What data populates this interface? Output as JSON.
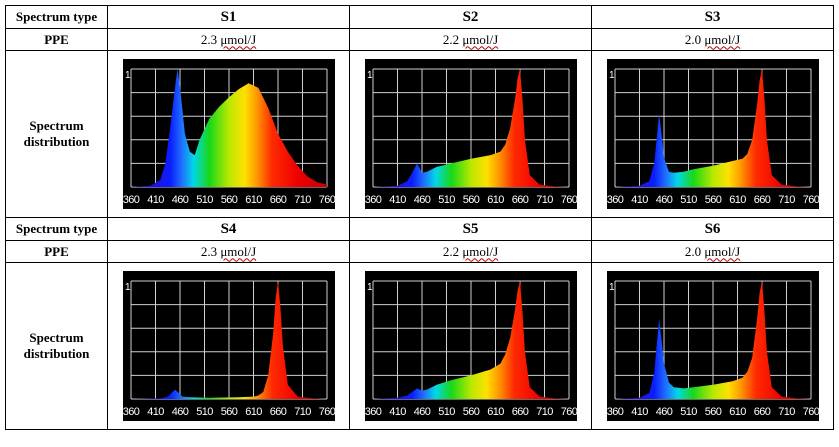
{
  "table": {
    "spectrum_type_label": "Spectrum type",
    "ppe_label": "PPE",
    "distribution_label_line1": "Spectrum",
    "distribution_label_line2": "distribution",
    "rows": [
      {
        "spectra": [
          {
            "name": "S1",
            "ppe_value": "2.3",
            "ppe_unit": "μmol/J"
          },
          {
            "name": "S2",
            "ppe_value": "2.2",
            "ppe_unit": "μmol/J"
          },
          {
            "name": "S3",
            "ppe_value": "2.0",
            "ppe_unit": "μmol/J"
          }
        ]
      },
      {
        "spectra": [
          {
            "name": "S4",
            "ppe_value": "2.3",
            "ppe_unit": "μmol/J"
          },
          {
            "name": "S5",
            "ppe_value": "2.2",
            "ppe_unit": "μmol/J"
          },
          {
            "name": "S6",
            "ppe_value": "2.0",
            "ppe_unit": "μmol/J"
          }
        ]
      }
    ]
  },
  "chart_data": [
    {
      "id": "S1",
      "type": "area",
      "ylabel": "1",
      "xlim": [
        360,
        760
      ],
      "ylim": [
        0,
        1
      ],
      "x_ticks": [
        360,
        410,
        460,
        510,
        560,
        610,
        660,
        710,
        760
      ],
      "x": [
        360,
        400,
        420,
        430,
        440,
        450,
        455,
        460,
        470,
        480,
        490,
        500,
        520,
        540,
        560,
        580,
        600,
        620,
        640,
        660,
        680,
        700,
        720,
        740,
        760
      ],
      "y": [
        0.0,
        0.01,
        0.06,
        0.2,
        0.5,
        0.85,
        1.0,
        0.85,
        0.45,
        0.3,
        0.27,
        0.4,
        0.58,
        0.68,
        0.76,
        0.83,
        0.88,
        0.84,
        0.67,
        0.45,
        0.3,
        0.18,
        0.09,
        0.04,
        0.02
      ]
    },
    {
      "id": "S2",
      "type": "area",
      "ylabel": "1",
      "xlim": [
        360,
        760
      ],
      "ylim": [
        0,
        1
      ],
      "x_ticks": [
        360,
        410,
        460,
        510,
        560,
        610,
        660,
        710,
        760
      ],
      "x": [
        360,
        410,
        430,
        440,
        450,
        460,
        470,
        490,
        520,
        560,
        600,
        620,
        630,
        640,
        650,
        655,
        660,
        665,
        670,
        680,
        700,
        730,
        760
      ],
      "y": [
        0.0,
        0.01,
        0.05,
        0.12,
        0.2,
        0.12,
        0.13,
        0.17,
        0.2,
        0.24,
        0.27,
        0.3,
        0.36,
        0.5,
        0.75,
        0.92,
        1.0,
        0.75,
        0.4,
        0.1,
        0.02,
        0.005,
        0.0
      ]
    },
    {
      "id": "S3",
      "type": "area",
      "ylabel": "1",
      "xlim": [
        360,
        760
      ],
      "ylim": [
        0,
        1
      ],
      "x_ticks": [
        360,
        410,
        460,
        510,
        560,
        610,
        660,
        710,
        760
      ],
      "x": [
        360,
        410,
        430,
        440,
        445,
        450,
        455,
        460,
        470,
        480,
        500,
        520,
        560,
        600,
        620,
        630,
        640,
        650,
        655,
        660,
        665,
        670,
        680,
        700,
        730,
        760
      ],
      "y": [
        0.0,
        0.01,
        0.05,
        0.2,
        0.4,
        0.62,
        0.45,
        0.25,
        0.13,
        0.12,
        0.13,
        0.15,
        0.18,
        0.22,
        0.24,
        0.28,
        0.4,
        0.7,
        0.9,
        1.0,
        0.75,
        0.4,
        0.1,
        0.02,
        0.005,
        0.0
      ]
    },
    {
      "id": "S4",
      "type": "area",
      "ylabel": "1",
      "xlim": [
        360,
        760
      ],
      "ylim": [
        0,
        1
      ],
      "x_ticks": [
        360,
        410,
        460,
        510,
        560,
        610,
        660,
        710,
        760
      ],
      "x": [
        360,
        420,
        435,
        445,
        450,
        455,
        465,
        480,
        520,
        580,
        610,
        620,
        630,
        640,
        650,
        655,
        660,
        665,
        670,
        680,
        700,
        730,
        760
      ],
      "y": [
        0.0,
        0.005,
        0.02,
        0.06,
        0.08,
        0.06,
        0.02,
        0.015,
        0.01,
        0.015,
        0.02,
        0.03,
        0.06,
        0.2,
        0.55,
        0.85,
        1.0,
        0.78,
        0.45,
        0.12,
        0.02,
        0.005,
        0.0
      ]
    },
    {
      "id": "S5",
      "type": "area",
      "ylabel": "1",
      "xlim": [
        360,
        760
      ],
      "ylim": [
        0,
        1
      ],
      "x_ticks": [
        360,
        410,
        460,
        510,
        560,
        610,
        660,
        710,
        760
      ],
      "x": [
        360,
        410,
        430,
        440,
        450,
        460,
        470,
        490,
        520,
        560,
        600,
        620,
        630,
        640,
        650,
        655,
        660,
        665,
        670,
        680,
        700,
        730,
        760
      ],
      "y": [
        0.0,
        0.01,
        0.03,
        0.06,
        0.09,
        0.07,
        0.08,
        0.12,
        0.16,
        0.2,
        0.25,
        0.3,
        0.38,
        0.52,
        0.76,
        0.92,
        1.0,
        0.75,
        0.4,
        0.1,
        0.02,
        0.005,
        0.0
      ]
    },
    {
      "id": "S6",
      "type": "area",
      "ylabel": "1",
      "xlim": [
        360,
        760
      ],
      "ylim": [
        0,
        1
      ],
      "x_ticks": [
        360,
        410,
        460,
        510,
        560,
        610,
        660,
        710,
        760
      ],
      "x": [
        360,
        410,
        430,
        440,
        445,
        450,
        455,
        460,
        470,
        480,
        500,
        520,
        560,
        600,
        620,
        630,
        640,
        650,
        655,
        660,
        665,
        670,
        680,
        700,
        730,
        760
      ],
      "y": [
        0.0,
        0.01,
        0.05,
        0.22,
        0.45,
        0.68,
        0.5,
        0.3,
        0.14,
        0.1,
        0.09,
        0.1,
        0.12,
        0.15,
        0.18,
        0.23,
        0.35,
        0.68,
        0.9,
        1.0,
        0.75,
        0.4,
        0.1,
        0.02,
        0.005,
        0.0
      ]
    }
  ]
}
